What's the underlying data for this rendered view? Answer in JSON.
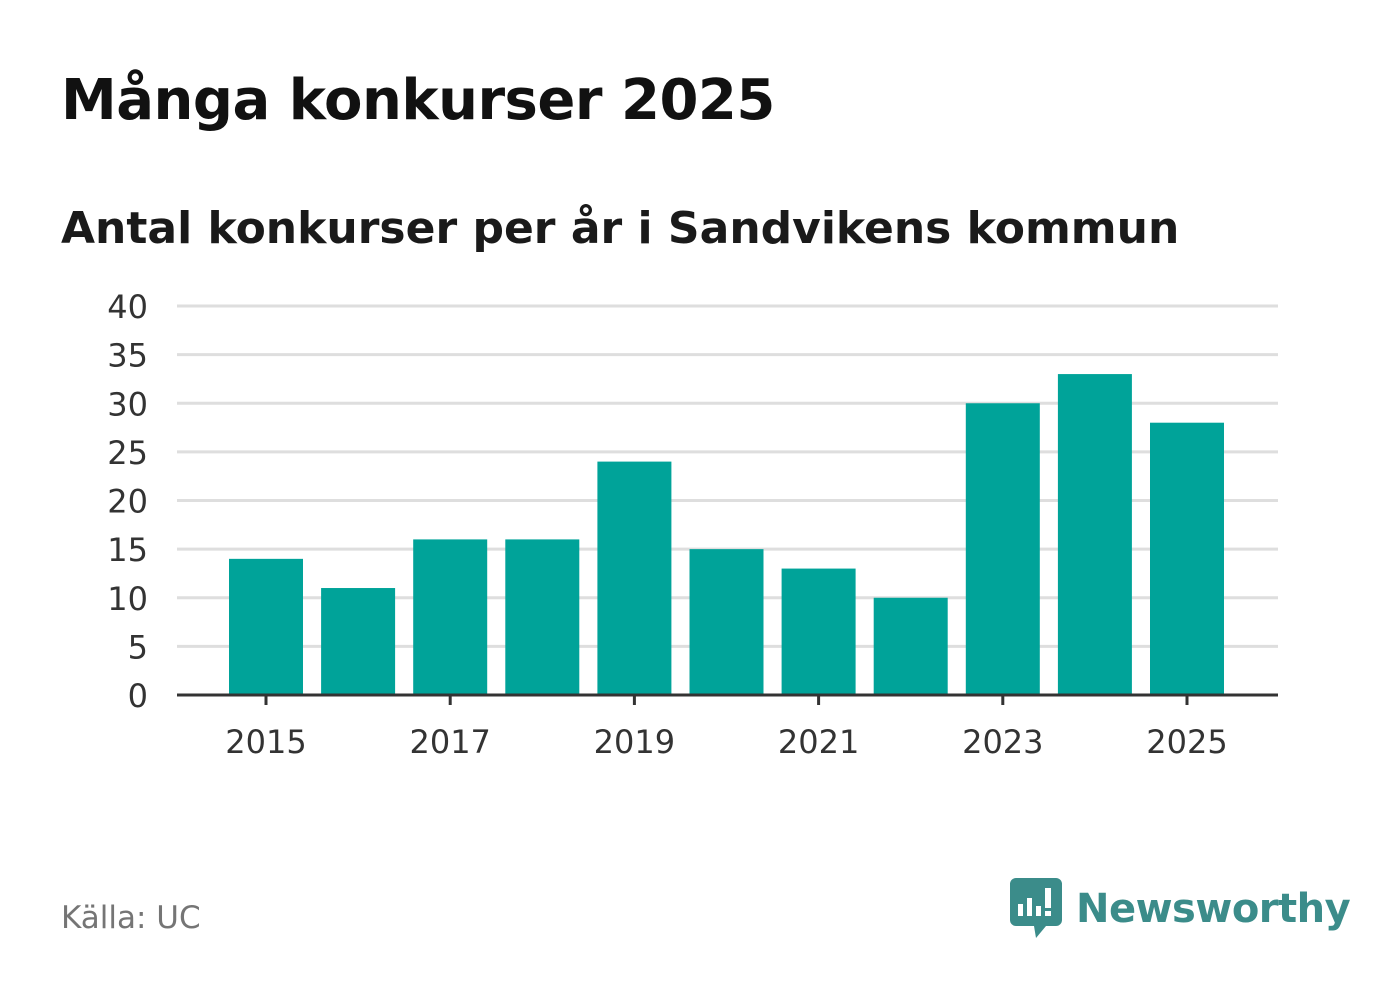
{
  "title": "Många konkurser 2025",
  "subtitle": "Antal konkurser per år i Sandvikens kommun",
  "source": "Källa: UC",
  "brand": {
    "name": "Newsworthy",
    "icon": "newsworthy-logo-icon",
    "color": "#3b8c8a"
  },
  "chart_data": {
    "type": "bar",
    "categories": [
      "2015",
      "2016",
      "2017",
      "2018",
      "2019",
      "2020",
      "2021",
      "2022",
      "2023",
      "2024",
      "2025"
    ],
    "values": [
      14,
      11,
      16,
      16,
      24,
      15,
      13,
      10,
      30,
      33,
      28
    ],
    "x_tick_labels": [
      "2015",
      "2017",
      "2019",
      "2021",
      "2023",
      "2025"
    ],
    "y_ticks": [
      "0",
      "5",
      "10",
      "15",
      "20",
      "25",
      "30",
      "35",
      "40"
    ],
    "ylim": [
      0,
      40
    ],
    "grid": true,
    "bar_color": "#00a399"
  }
}
